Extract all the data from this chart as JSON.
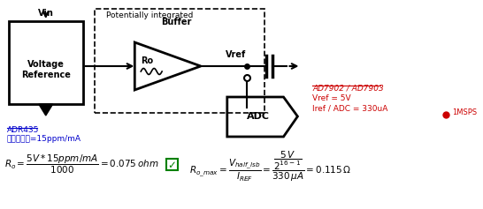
{
  "bg_color": "#ffffff",
  "adr435_text": "ADR435",
  "adr435_color": "#0000cc",
  "load_text": "负载寄存器=15ppm/mA",
  "load_color": "#0000cc",
  "ad7902_text": "AD7902 / AD7903",
  "ad7902_color": "#cc0000",
  "vref_ann_text": "Vref = 5V",
  "iref_ann_text": "Iref / ADC = 330uA",
  "msps_text": "1MSPS",
  "msps_color": "#cc0000",
  "voltage_ref_label": "Voltage\nReference",
  "buffer_label": "Buffer",
  "adc_label": "ADC",
  "ro_label": "Ro",
  "vin_label": "Vin",
  "vref_label": "Vref",
  "potentially_label": "Potentially integrated"
}
